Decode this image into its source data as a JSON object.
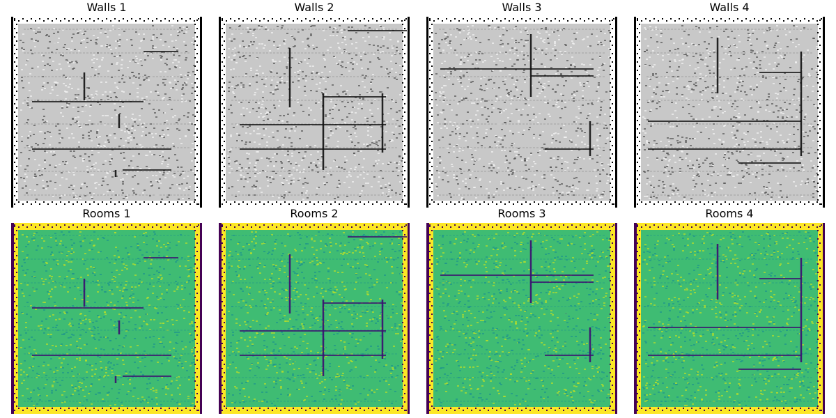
{
  "panels": [
    {
      "title": "Walls 1",
      "kind": "walls"
    },
    {
      "title": "Walls 2",
      "kind": "walls"
    },
    {
      "title": "Walls 3",
      "kind": "walls"
    },
    {
      "title": "Walls 4",
      "kind": "walls"
    },
    {
      "title": "Rooms 1",
      "kind": "rooms"
    },
    {
      "title": "Rooms 2",
      "kind": "rooms"
    },
    {
      "title": "Rooms 3",
      "kind": "rooms"
    },
    {
      "title": "Rooms 4",
      "kind": "rooms"
    }
  ],
  "colors": {
    "walls_background": "#c8c8c8",
    "walls_line": "#111111",
    "walls_speckle_light": "#f2f2f2",
    "walls_speckle_dark": "#555555",
    "rooms_background": "#3fbc73",
    "rooms_edge": "#fde725",
    "rooms_line": "#3b0f70",
    "rooms_speckle_light": "#b8de29",
    "rooms_speckle_dark": "#1f968b",
    "rooms_border_dark": "#440154"
  }
}
